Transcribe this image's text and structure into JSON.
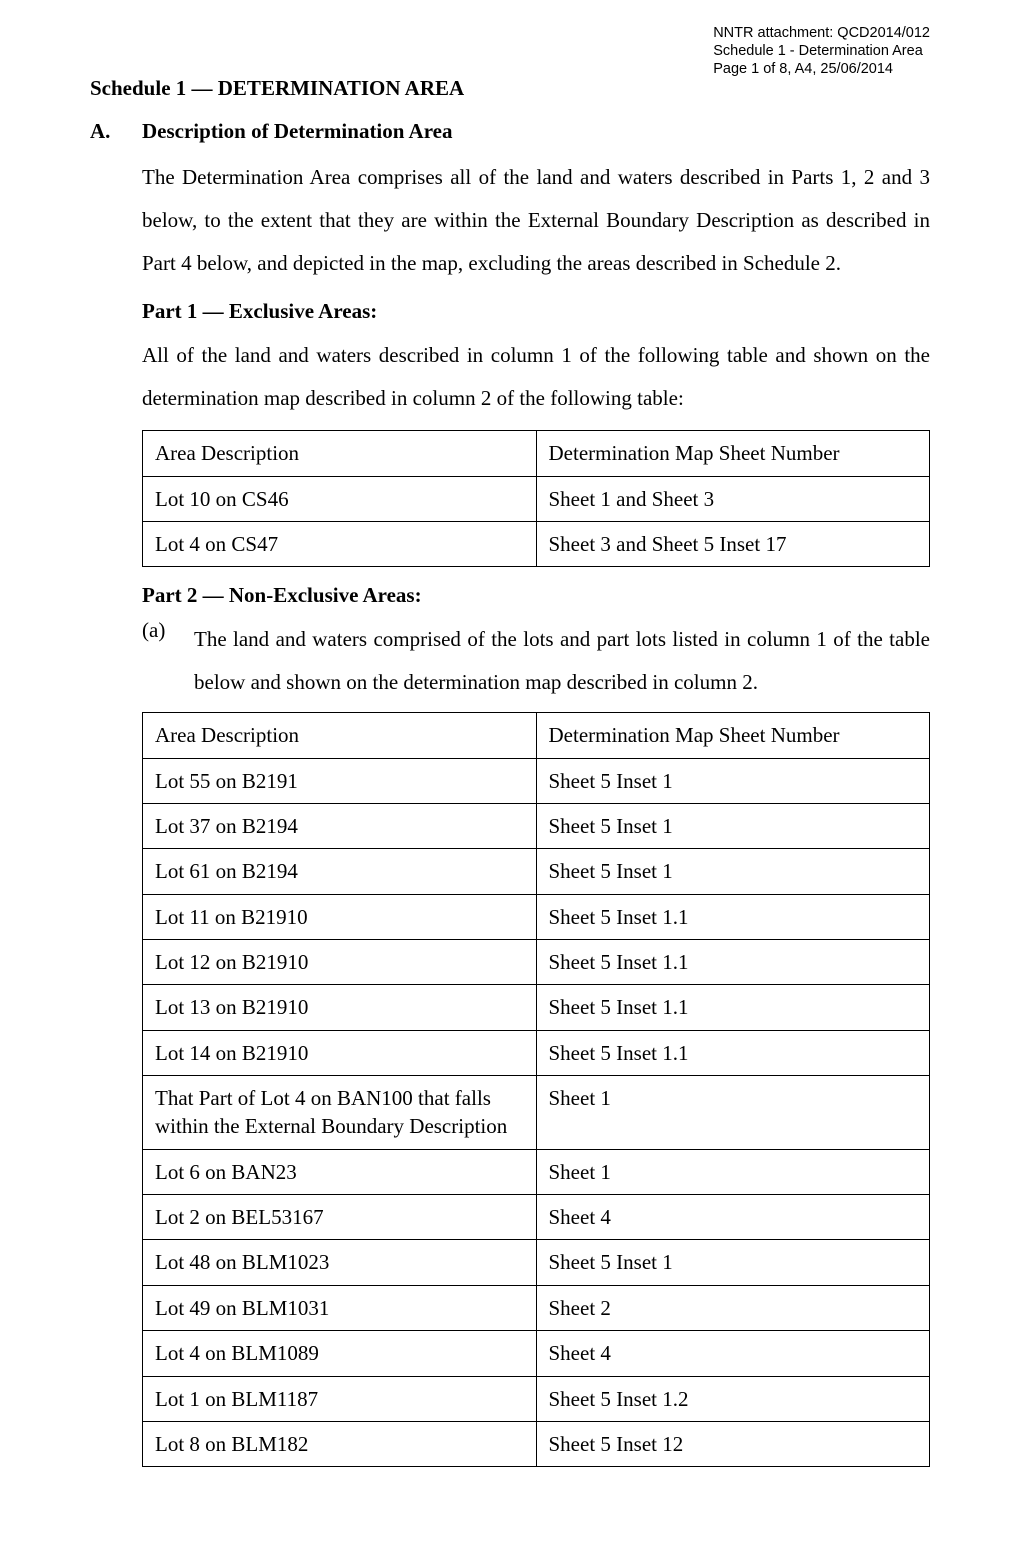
{
  "header": {
    "line1": "NNTR attachment: QCD2014/012",
    "line2": "Schedule 1 - Determination Area",
    "line3": "Page 1 of 8, A4, 25/06/2014"
  },
  "schedule_title": "Schedule 1 — DETERMINATION AREA",
  "sectionA": {
    "letter": "A.",
    "title": "Description of Determination Area",
    "para": "The Determination Area comprises all of the land and waters described in Parts 1, 2 and 3 below, to the extent that they are within the External Boundary Description as described in Part 4 below, and depicted in the map, excluding the areas described in Schedule 2."
  },
  "part1": {
    "title": "Part 1 — Exclusive Areas:",
    "intro": "All of the land and waters described in column 1 of the following table and shown on the determination map described in column 2 of the following table:",
    "header_row": [
      "Area Description",
      "Determination Map Sheet Number"
    ],
    "rows": [
      [
        "Lot 10 on CS46",
        "Sheet 1 and Sheet 3"
      ],
      [
        "Lot 4 on CS47",
        "Sheet 3 and Sheet 5 Inset 17"
      ]
    ]
  },
  "part2": {
    "title": "Part 2 — Non-Exclusive Areas:",
    "sub_a": {
      "letter": "(a)",
      "text": "The land and waters comprised of the lots and part lots listed in column 1 of the table below and shown on the determination map described in column 2."
    },
    "header_row": [
      "Area Description",
      "Determination Map Sheet Number"
    ],
    "rows": [
      [
        "Lot 55 on B2191",
        "Sheet 5 Inset 1"
      ],
      [
        "Lot 37 on B2194",
        "Sheet 5 Inset 1"
      ],
      [
        "Lot 61 on B2194",
        "Sheet 5 Inset 1"
      ],
      [
        "Lot 11 on B21910",
        "Sheet 5 Inset 1.1"
      ],
      [
        "Lot 12 on B21910",
        "Sheet 5 Inset 1.1"
      ],
      [
        "Lot 13 on B21910",
        "Sheet 5 Inset 1.1"
      ],
      [
        "Lot 14 on B21910",
        "Sheet 5 Inset 1.1"
      ],
      [
        "That Part of Lot 4 on BAN100 that falls within the External Boundary Description",
        "Sheet 1"
      ],
      [
        "Lot 6 on BAN23",
        "Sheet 1"
      ],
      [
        "Lot 2 on BEL53167",
        "Sheet 4"
      ],
      [
        "Lot 48 on BLM1023",
        "Sheet 5 Inset 1"
      ],
      [
        "Lot 49 on BLM1031",
        "Sheet 2"
      ],
      [
        "Lot 4 on BLM1089",
        "Sheet 4"
      ],
      [
        "Lot 1 on BLM1187",
        "Sheet 5 Inset 1.2"
      ],
      [
        "Lot 8 on BLM182",
        "Sheet 5 Inset 12"
      ]
    ]
  }
}
